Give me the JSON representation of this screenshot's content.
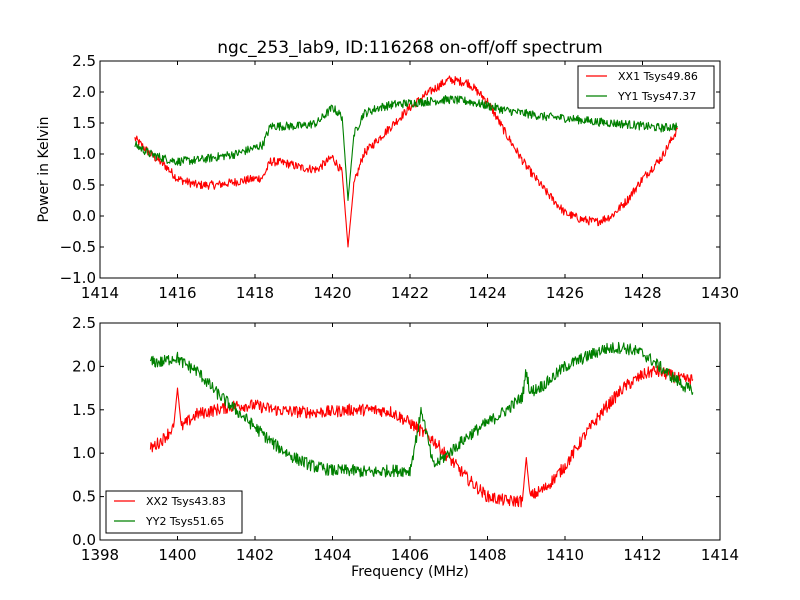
{
  "chart_data": [
    {
      "type": "line",
      "title": "ngc_253_lab9, ID:116268 on-off/off spectrum",
      "xlabel": "",
      "ylabel": "Power in Kelvin",
      "xlim": [
        1414,
        1430
      ],
      "ylim": [
        -1.0,
        2.5
      ],
      "xticks": [
        "1414",
        "1416",
        "1418",
        "1420",
        "1422",
        "1424",
        "1426",
        "1428",
        "1430"
      ],
      "yticks": [
        "−1.0",
        "−0.5",
        "0.0",
        "0.5",
        "1.0",
        "1.5",
        "2.0",
        "2.5"
      ],
      "legend_position": "top-right",
      "grid": false,
      "series": [
        {
          "name": "XX1 Tsys49.86",
          "color": "#ff0000",
          "x": [
            1414.9,
            1415.3,
            1415.7,
            1416.0,
            1416.5,
            1417.0,
            1417.5,
            1418.0,
            1418.2,
            1418.4,
            1418.8,
            1419.2,
            1419.6,
            1420.0,
            1420.25,
            1420.4,
            1420.55,
            1420.8,
            1421.2,
            1421.6,
            1422.0,
            1422.5,
            1423.0,
            1423.5,
            1424.0,
            1424.5,
            1425.0,
            1425.5,
            1426.0,
            1426.4,
            1426.8,
            1427.2,
            1427.6,
            1428.0,
            1428.5,
            1428.9
          ],
          "y": [
            1.25,
            1.0,
            0.8,
            0.6,
            0.5,
            0.5,
            0.55,
            0.6,
            0.62,
            0.88,
            0.85,
            0.78,
            0.75,
            0.95,
            0.7,
            -0.5,
            0.5,
            1.0,
            1.25,
            1.5,
            1.75,
            2.0,
            2.2,
            2.15,
            1.85,
            1.3,
            0.8,
            0.4,
            0.05,
            -0.05,
            -0.1,
            0.0,
            0.25,
            0.6,
            0.95,
            1.4
          ]
        },
        {
          "name": "YY1 Tsys47.37",
          "color": "#008000",
          "x": [
            1414.9,
            1415.3,
            1415.7,
            1416.0,
            1416.5,
            1417.0,
            1417.5,
            1418.0,
            1418.2,
            1418.4,
            1418.8,
            1419.2,
            1419.6,
            1420.0,
            1420.25,
            1420.4,
            1420.55,
            1420.8,
            1421.2,
            1421.6,
            1422.0,
            1422.5,
            1423.0,
            1423.5,
            1424.0,
            1424.5,
            1425.0,
            1425.5,
            1426.0,
            1426.4,
            1426.8,
            1427.2,
            1427.6,
            1428.0,
            1428.5,
            1428.9
          ],
          "y": [
            1.15,
            1.0,
            0.92,
            0.88,
            0.9,
            0.95,
            1.0,
            1.1,
            1.15,
            1.45,
            1.45,
            1.45,
            1.5,
            1.75,
            1.6,
            0.25,
            1.3,
            1.65,
            1.75,
            1.8,
            1.82,
            1.85,
            1.88,
            1.85,
            1.78,
            1.7,
            1.65,
            1.6,
            1.58,
            1.55,
            1.52,
            1.5,
            1.48,
            1.45,
            1.42,
            1.45
          ]
        }
      ]
    },
    {
      "type": "line",
      "title": "",
      "xlabel": "Frequency (MHz)",
      "ylabel": "",
      "xlim": [
        1398,
        1414
      ],
      "ylim": [
        0.0,
        2.5
      ],
      "xticks": [
        "1398",
        "1400",
        "1402",
        "1404",
        "1406",
        "1408",
        "1410",
        "1412",
        "1414"
      ],
      "yticks": [
        "0.0",
        "0.5",
        "1.0",
        "1.5",
        "2.0",
        "2.5"
      ],
      "legend_position": "lower-left",
      "grid": false,
      "series": [
        {
          "name": "XX2 Tsys43.83",
          "color": "#ff0000",
          "x": [
            1399.3,
            1399.6,
            1399.9,
            1400.0,
            1400.1,
            1400.5,
            1401.0,
            1401.5,
            1402.0,
            1402.5,
            1403.0,
            1403.5,
            1404.0,
            1404.5,
            1405.0,
            1405.5,
            1406.0,
            1406.3,
            1406.6,
            1407.0,
            1407.5,
            1408.0,
            1408.5,
            1408.9,
            1409.0,
            1409.1,
            1409.5,
            1410.0,
            1410.5,
            1411.0,
            1411.5,
            1412.0,
            1412.3,
            1412.7,
            1413.0,
            1413.3
          ],
          "y": [
            1.05,
            1.15,
            1.3,
            1.75,
            1.3,
            1.45,
            1.5,
            1.55,
            1.55,
            1.5,
            1.48,
            1.47,
            1.48,
            1.5,
            1.5,
            1.48,
            1.35,
            1.25,
            1.15,
            0.95,
            0.7,
            0.5,
            0.45,
            0.45,
            0.95,
            0.5,
            0.6,
            0.85,
            1.2,
            1.5,
            1.75,
            1.9,
            1.95,
            1.9,
            1.85,
            1.85
          ]
        },
        {
          "name": "YY2 Tsys51.65",
          "color": "#008000",
          "x": [
            1399.3,
            1399.6,
            1399.9,
            1400.0,
            1400.1,
            1400.5,
            1401.0,
            1401.5,
            1402.0,
            1402.5,
            1403.0,
            1403.5,
            1404.0,
            1404.5,
            1405.0,
            1405.5,
            1406.0,
            1406.3,
            1406.6,
            1407.0,
            1407.5,
            1408.0,
            1408.5,
            1408.9,
            1409.0,
            1409.1,
            1409.5,
            1410.0,
            1410.5,
            1411.0,
            1411.5,
            1412.0,
            1412.3,
            1412.7,
            1413.0,
            1413.3
          ],
          "y": [
            2.05,
            2.05,
            2.1,
            2.1,
            2.05,
            1.95,
            1.7,
            1.5,
            1.3,
            1.1,
            0.95,
            0.85,
            0.8,
            0.8,
            0.78,
            0.8,
            0.8,
            1.5,
            0.85,
            1.0,
            1.2,
            1.35,
            1.5,
            1.65,
            1.95,
            1.7,
            1.8,
            2.0,
            2.1,
            2.2,
            2.22,
            2.15,
            2.05,
            1.9,
            1.8,
            1.7
          ]
        }
      ]
    }
  ]
}
